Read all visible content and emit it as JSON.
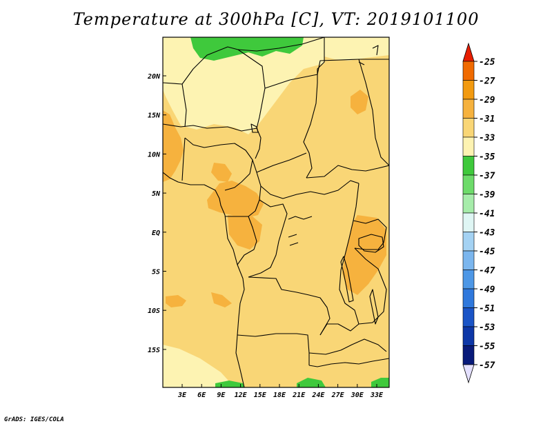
{
  "title": "Temperature at 300hPa [C], VT: 2019101100",
  "credit": "GrADS: IGES/COLA",
  "colors": {
    "frame": "#000000",
    "border": "#000000"
  },
  "axes": {
    "lon_ticks": [
      "3E",
      "6E",
      "9E",
      "12E",
      "15E",
      "18E",
      "21E",
      "24E",
      "27E",
      "30E",
      "33E"
    ],
    "lat_ticks": [
      "20N",
      "15N",
      "10N",
      "5N",
      "EQ",
      "5S",
      "10S",
      "15S"
    ]
  },
  "colorbar": {
    "levels": [
      {
        "label": "-25",
        "color": "#e03000"
      },
      {
        "label": "-27",
        "color": "#f06a00"
      },
      {
        "label": "-29",
        "color": "#f29a10"
      },
      {
        "label": "-31",
        "color": "#f6b23e"
      },
      {
        "label": "-33",
        "color": "#f9d676"
      },
      {
        "label": "-35",
        "color": "#fdf3b2"
      },
      {
        "label": "-37",
        "color": "#3fc93c"
      },
      {
        "label": "-39",
        "color": "#6ddb6a"
      },
      {
        "label": "-41",
        "color": "#a6ecaa"
      },
      {
        "label": "-43",
        "color": "#dff6f4"
      },
      {
        "label": "-45",
        "color": "#a4d2f3"
      },
      {
        "label": "-47",
        "color": "#7bb6ee"
      },
      {
        "label": "-49",
        "color": "#4d97e6"
      },
      {
        "label": "-51",
        "color": "#2f78dc"
      },
      {
        "label": "-53",
        "color": "#1a54c6"
      },
      {
        "label": "-55",
        "color": "#0d37a7"
      },
      {
        "label": "-57",
        "color": "#081a7a"
      }
    ],
    "top_color": "#e81e00",
    "bottom_color": "#e4e0ff"
  }
}
